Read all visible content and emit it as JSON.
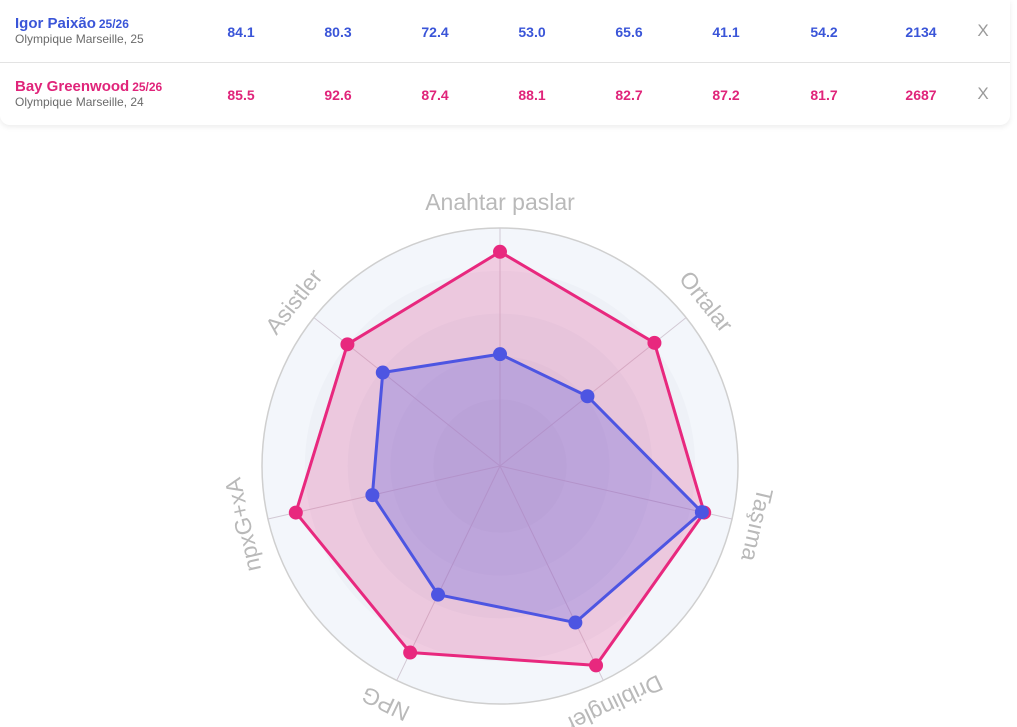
{
  "players": [
    {
      "name": "Igor Paixão",
      "season": "25/26",
      "club_age": "Olympique Marseille, 25",
      "values": [
        "84.1",
        "80.3",
        "72.4",
        "53.0",
        "65.6",
        "41.1",
        "54.2",
        "2134"
      ],
      "remove_label": "X",
      "color": "#3a55d8"
    },
    {
      "name": "Bay Greenwood",
      "season": "25/26",
      "club_age": "Olympique Marseille, 24",
      "values": [
        "85.5",
        "92.6",
        "87.4",
        "88.1",
        "82.7",
        "87.2",
        "81.7",
        "2687"
      ],
      "remove_label": "X",
      "color": "#e0247a"
    }
  ],
  "chart_data": {
    "type": "radar",
    "axes": [
      "Anahtar paslar",
      "Ortalar",
      "Taşıma",
      "Driblingler",
      "NPG",
      "npxG+xA",
      "Asistler"
    ],
    "range": [
      0,
      100
    ],
    "series": [
      {
        "name": "Igor Paixão",
        "color": "#4d55e2",
        "values": [
          47,
          47,
          87,
          73,
          60,
          55,
          63
        ]
      },
      {
        "name": "Bay Greenwood",
        "color": "#e8287e",
        "values": [
          90,
          83,
          88,
          93,
          87,
          88,
          82
        ]
      }
    ]
  }
}
